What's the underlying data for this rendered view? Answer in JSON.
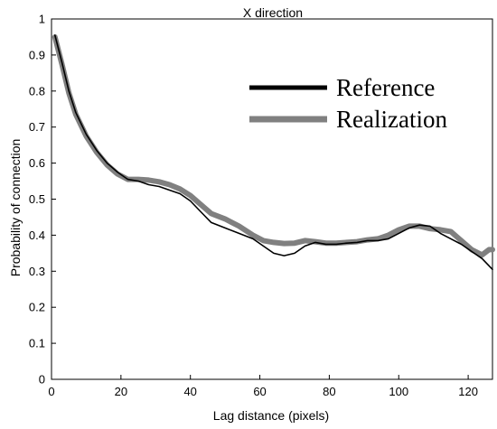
{
  "chart_data": {
    "type": "line",
    "title": "X direction",
    "xlabel": "Lag distance (pixels)",
    "ylabel": "Probability of connection",
    "xlim": [
      0,
      127
    ],
    "ylim": [
      0,
      1
    ],
    "xticks": [
      "0",
      "20",
      "40",
      "60",
      "80",
      "100",
      "120"
    ],
    "yticks": [
      "0",
      "0.1",
      "0.2",
      "0.3",
      "0.4",
      "0.5",
      "0.6",
      "0.7",
      "0.8",
      "0.9",
      "1"
    ],
    "legend_position": "top-right",
    "grid": false,
    "series": [
      {
        "name": "Reference",
        "color": "#000000",
        "x": [
          1,
          3,
          5,
          7,
          10,
          13,
          16,
          19,
          22,
          25,
          28,
          31,
          34,
          37,
          40,
          43,
          46,
          50,
          54,
          58,
          61,
          64,
          67,
          70,
          73,
          76,
          79,
          82,
          85,
          88,
          91,
          94,
          97,
          100,
          103,
          106,
          109,
          112,
          115,
          118,
          121,
          124,
          127
        ],
        "values": [
          0.955,
          0.88,
          0.8,
          0.74,
          0.68,
          0.635,
          0.6,
          0.575,
          0.555,
          0.55,
          0.54,
          0.535,
          0.525,
          0.515,
          0.495,
          0.465,
          0.435,
          0.42,
          0.405,
          0.39,
          0.37,
          0.35,
          0.343,
          0.35,
          0.37,
          0.38,
          0.375,
          0.375,
          0.378,
          0.38,
          0.385,
          0.385,
          0.39,
          0.405,
          0.42,
          0.428,
          0.425,
          0.405,
          0.39,
          0.375,
          0.355,
          0.335,
          0.305
        ]
      },
      {
        "name": "Realization",
        "color": "#808080",
        "x": [
          1,
          3,
          5,
          7,
          10,
          13,
          16,
          19,
          22,
          25,
          28,
          31,
          34,
          37,
          40,
          43,
          46,
          50,
          54,
          58,
          61,
          64,
          67,
          70,
          73,
          76,
          79,
          82,
          85,
          88,
          91,
          94,
          97,
          100,
          103,
          106,
          109,
          112,
          115,
          118,
          121,
          124,
          126,
          127
        ],
        "values": [
          0.95,
          0.875,
          0.795,
          0.735,
          0.675,
          0.63,
          0.595,
          0.57,
          0.555,
          0.555,
          0.553,
          0.548,
          0.54,
          0.528,
          0.51,
          0.485,
          0.46,
          0.445,
          0.425,
          0.4,
          0.385,
          0.38,
          0.377,
          0.378,
          0.385,
          0.382,
          0.378,
          0.378,
          0.38,
          0.382,
          0.387,
          0.39,
          0.4,
          0.415,
          0.425,
          0.425,
          0.418,
          0.415,
          0.41,
          0.385,
          0.36,
          0.345,
          0.36,
          0.36
        ]
      }
    ]
  }
}
